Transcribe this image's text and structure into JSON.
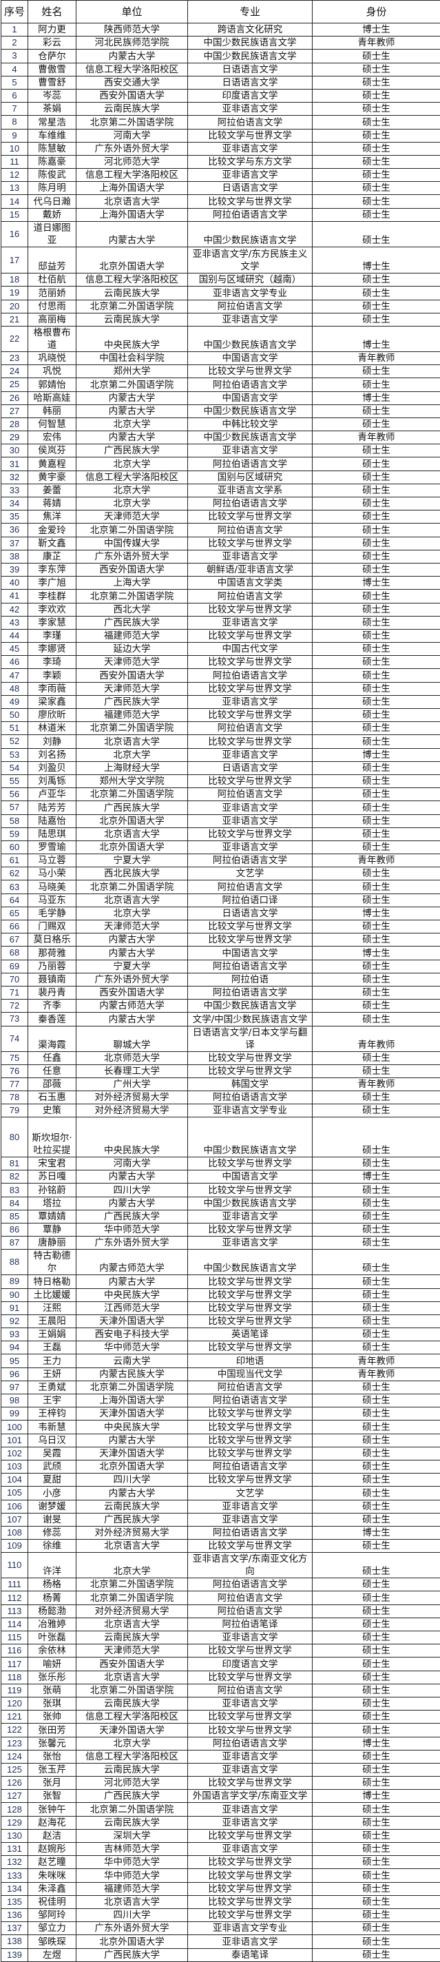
{
  "headers": [
    "序号",
    "姓名",
    "单位",
    "专业",
    "身份"
  ],
  "rows": [
    [
      "1",
      "阿力更",
      "陕西师范大学",
      "跨语言文化研究",
      "博士生"
    ],
    [
      "2",
      "彩云",
      "河北民族师范学院",
      "中国少数民族语言文学",
      "青年教师"
    ],
    [
      "3",
      "仓萨尔",
      "内蒙古大学",
      "中国少数民族语言文学",
      "硕士生"
    ],
    [
      "4",
      "曹傲雪",
      "信息工程大学洛阳校区",
      "日语语言文学",
      "硕士生"
    ],
    [
      "5",
      "曹雪舒",
      "西安交通大学",
      "日语语言文学",
      "硕士生"
    ],
    [
      "6",
      "岑蕊",
      "西安外国语大学",
      "印度语言文学",
      "硕士生"
    ],
    [
      "7",
      "茶娟",
      "云南民族大学",
      "亚非语言文学",
      "硕士生"
    ],
    [
      "8",
      "常星浩",
      "北京第二外国语学院",
      "阿拉伯语言文学",
      "硕士生"
    ],
    [
      "9",
      "车维维",
      "河南大学",
      "比较文学与世界文学",
      "硕士生"
    ],
    [
      "10",
      "陈慧敏",
      "广东外语外贸大学",
      "亚非语言文学",
      "硕士生"
    ],
    [
      "11",
      "陈嘉豪",
      "河北师范大学",
      "比较文学与东方文学",
      "硕士生"
    ],
    [
      "12",
      "陈俊武",
      "信息工程大学洛阳校区",
      "亚非语言文学",
      "硕士生"
    ],
    [
      "13",
      "陈月明",
      "上海外国语大学",
      "日语语言文学",
      "硕士生"
    ],
    [
      "14",
      "代乌日瀚",
      "北京语言大学",
      "比较文学与世界文学",
      "硕士生"
    ],
    [
      "15",
      "戴娇",
      "上海外国语大学",
      "阿拉伯语语言文学",
      "硕士生"
    ],
    [
      "16",
      "道日娜图亚",
      "内蒙古大学",
      "中国少数民族语言文学",
      "硕士生"
    ],
    [
      "17",
      "邸益芳",
      "北京外国语大学",
      "亚非语言文学/东方民族主义文学",
      "博士生"
    ],
    [
      "18",
      "杜佰航",
      "信息工程大学洛阳校区",
      "国别与区域研究（越南）",
      "硕士生"
    ],
    [
      "19",
      "范丽娇",
      "云南民族大学",
      "亚非语言文学专业",
      "硕士生"
    ],
    [
      "20",
      "付思雨",
      "北京第二外国语学院",
      "阿拉伯语言文学",
      "硕士生"
    ],
    [
      "21",
      "高丽梅",
      "云南民族大学",
      "亚非语言文学",
      "硕士生"
    ],
    [
      "22",
      "格根曹布道",
      "中央民族大学",
      "中国少数民族语言文学",
      "博士生"
    ],
    [
      "23",
      "巩晓悦",
      "中国社会科学院",
      "中国语言文学",
      "青年教师"
    ],
    [
      "24",
      "巩悦",
      "郑州大学",
      "比较文学与世界文学",
      "硕士生"
    ],
    [
      "25",
      "郭婧怡",
      "北京第二外国语学院",
      "阿拉伯语语言文学",
      "硕士生"
    ],
    [
      "26",
      "哈斯高娃",
      "内蒙古大学",
      "中国语言文学",
      "博士生"
    ],
    [
      "27",
      "韩丽",
      "内蒙古大学",
      "中国少数民族语言文学",
      "硕士生"
    ],
    [
      "28",
      "何智慧",
      "北京大学",
      "中韩比较文学",
      "硕士生"
    ],
    [
      "29",
      "宏伟",
      "内蒙古大学",
      "中国少数民族语言文学",
      "青年教师"
    ],
    [
      "30",
      "侯岚芬",
      "广西民族大学",
      "亚非语言文学",
      "硕士生"
    ],
    [
      "31",
      "黄嘉程",
      "北京大学",
      "阿拉伯语语言文学",
      "硕士生"
    ],
    [
      "32",
      "黄宇豪",
      "信息工程大学洛阳校区",
      "国别与区域研究",
      "硕士生"
    ],
    [
      "33",
      "姜蕾",
      "北京大学",
      "亚非语言文学系",
      "硕士生"
    ],
    [
      "34",
      "蒋婧",
      "北京大学",
      "阿拉伯语语言文学",
      "硕士生"
    ],
    [
      "35",
      "焦洋",
      "天津师范大学",
      "比较文学与世界文学",
      "硕士生"
    ],
    [
      "36",
      "金爱玲",
      "北京第二外国语学院",
      "阿拉伯语言文学",
      "硕士生"
    ],
    [
      "37",
      "靳文鑫",
      "中国传媒大学",
      "比较文学与世界文学",
      "硕士生"
    ],
    [
      "38",
      "康芷",
      "广东外语外贸大学",
      "亚非语言文学",
      "硕士生"
    ],
    [
      "39",
      "李东萍",
      "西安外国语大学",
      "朝鲜语/亚非语言文学",
      "硕士生"
    ],
    [
      "40",
      "李广旭",
      "上海大学",
      "中国语言文学类",
      "博士生"
    ],
    [
      "41",
      "李桂群",
      "北京第二外国语学院",
      "阿拉伯语言文学",
      "硕士生"
    ],
    [
      "42",
      "李欢欢",
      "西北大学",
      "比较文学与世界文学",
      "硕士生"
    ],
    [
      "43",
      "李家慧",
      "广西民族大学",
      "亚非语言文学",
      "硕士生"
    ],
    [
      "44",
      "李瑾",
      "福建师范大学",
      "比较文学与世界文学",
      "硕士生"
    ],
    [
      "45",
      "李娜贤",
      "延边大学",
      "中国古代文学",
      "硕士生"
    ],
    [
      "46",
      "李琦",
      "天津师范大学",
      "比较文学与世界文学",
      "硕士生"
    ],
    [
      "47",
      "李颖",
      "西安外国语大学",
      "阿拉伯语语言文学",
      "硕士生"
    ],
    [
      "48",
      "李雨薇",
      "天津师范大学",
      "比较文学与世界文学",
      "硕士生"
    ],
    [
      "49",
      "梁家鑫",
      "广西民族大学",
      "亚非语言文学",
      "硕士生"
    ],
    [
      "50",
      "廖欣昕",
      "福建师范大学",
      "比较文学与世界文学",
      "硕士生"
    ],
    [
      "51",
      "林道米",
      "北京第二外国语学院",
      "阿拉伯语言文学",
      "硕士生"
    ],
    [
      "52",
      "刘静",
      "北京语言大学",
      "比较文学与世界文学",
      "硕士生"
    ],
    [
      "53",
      "刘名扬",
      "北京大学",
      "亚非语言文学",
      "博士生"
    ],
    [
      "54",
      "刘盈贝",
      "上海财经大学",
      "日语语言文学",
      "硕士生"
    ],
    [
      "55",
      "刘禹铄",
      "郑州大学文学院",
      "比较文学与世界文学",
      "硕士生"
    ],
    [
      "56",
      "卢亚华",
      "北京第二外国语学院",
      "阿拉伯语言文学",
      "硕士生"
    ],
    [
      "57",
      "陆芳芳",
      "广西民族大学",
      "亚非语言文学",
      "硕士生"
    ],
    [
      "58",
      "陆嘉怡",
      "北京外国语大学",
      "亚非语言文学",
      "硕士生"
    ],
    [
      "59",
      "陆思琪",
      "北京语言大学",
      "比较文学与世界文学",
      "硕士生"
    ],
    [
      "60",
      "罗雪瑜",
      "北京外国语大学",
      "亚非语言文学",
      "硕士生"
    ],
    [
      "61",
      "马立蓉",
      "宁夏大学",
      "阿拉伯语语言文学",
      "青年教师"
    ],
    [
      "62",
      "马小荣",
      "西北民族大学",
      "文艺学",
      "硕士生"
    ],
    [
      "63",
      "马晓美",
      "北京第二外国语学院",
      "阿拉伯语言文学",
      "硕士生"
    ],
    [
      "64",
      "马亚东",
      "北京语言大学",
      "阿拉伯语口译",
      "硕士生"
    ],
    [
      "65",
      "毛学静",
      "北京大学",
      "日语语言文学",
      "博士生"
    ],
    [
      "66",
      "门赐双",
      "天津师范大学",
      "比较文学与世界文学",
      "硕士生"
    ],
    [
      "67",
      "莫日格乐",
      "内蒙古大学",
      "比较文学与世界文学",
      "硕士生"
    ],
    [
      "68",
      "那荷雅",
      "内蒙古大学",
      "中国语言文学",
      "博士生"
    ],
    [
      "69",
      "乃丽蓉",
      "宁夏大学",
      "阿拉伯语语言文学",
      "硕士生"
    ],
    [
      "70",
      "聂镇南",
      "广东外语外贸大学",
      "阿拉伯语",
      "硕士生"
    ],
    [
      "71",
      "裴丹青",
      "西安外国语大学",
      "阿拉伯语语言文学",
      "硕士生"
    ],
    [
      "72",
      "齐季",
      "内蒙古师范大学",
      "中国少数民族语言文学",
      "硕士生"
    ],
    [
      "73",
      "秦香莲",
      "内蒙古大学",
      "文学/中国少数民族语言文学",
      "硕士生"
    ],
    [
      "74",
      "渠海霞",
      "聊城大学",
      "日语语言文学/日本文学与翻译",
      "青年教师"
    ],
    [
      "75",
      "任鑫",
      "北京师范大学",
      "比较文学与世界文学",
      "硕士生"
    ],
    [
      "76",
      "任意",
      "长春理工大学",
      "比较文学与世界文学",
      "硕士生"
    ],
    [
      "77",
      "邵薇",
      "广州大学",
      "韩国文学",
      "青年教师"
    ],
    [
      "78",
      "石玉惠",
      "对外经济贸易大学",
      "阿拉伯语语言文学",
      "硕士生"
    ],
    [
      "79",
      "史策",
      "对外经济贸易大学",
      "亚非语言文学专业",
      "硕士生"
    ],
    [
      "80",
      "斯坎坦尔·吐拉买提",
      "中央民族大学",
      "中国少数民族语言文学",
      "硕士生"
    ],
    [
      "81",
      "宋宝君",
      "河南大学",
      "比较文学与世界文学",
      "硕士生"
    ],
    [
      "82",
      "苏日嘎",
      "内蒙古大学",
      "中国语言文学",
      "博士生"
    ],
    [
      "83",
      "孙铭蔚",
      "四川大学",
      "比较文学与世界文学",
      "硕士生"
    ],
    [
      "84",
      "塔拉",
      "内蒙古大学",
      "中国少数民族语言文学",
      "硕士生"
    ],
    [
      "85",
      "覃婧婧",
      "广西民族大学",
      "亚非语言文学",
      "硕士生"
    ],
    [
      "86",
      "覃静",
      "华中师范大学",
      "比较文学与世界文学",
      "硕士生"
    ],
    [
      "87",
      "唐静丽",
      "广东外语外贸大学",
      "亚非语言文学",
      "硕士生"
    ],
    [
      "88",
      "特古勒德尔",
      "内蒙古师范大学",
      "中国少数民族语言文学",
      "硕士生"
    ],
    [
      "89",
      "特日格勒",
      "内蒙古大学",
      "比较文学与世界文学",
      "硕士生"
    ],
    [
      "90",
      "土比媛媛",
      "中央民族大学",
      "比较文学与世界文学",
      "硕士生"
    ],
    [
      "91",
      "汪熙",
      "江西师范大学",
      "比较文学与世界文学",
      "硕士生"
    ],
    [
      "92",
      "王晨阳",
      "天津外国语大学",
      "比较文学与世界文学",
      "硕士生"
    ],
    [
      "93",
      "王娟娟",
      "西安电子科技大学",
      "英语笔译",
      "硕士生"
    ],
    [
      "94",
      "王磊",
      "华中师范大学",
      "比较文学与世界文学",
      "硕士生"
    ],
    [
      "95",
      "王力",
      "云南大学",
      "印地语",
      "青年教师"
    ],
    [
      "96",
      "王妍",
      "内蒙古民族大学",
      "中国现当代文学",
      "青年教师"
    ],
    [
      "97",
      "王勇斌",
      "北京第二外国语学院",
      "阿拉伯语言文学",
      "硕士生"
    ],
    [
      "98",
      "王宇",
      "上海外国语大学",
      "阿拉伯语语言文学",
      "硕士生"
    ],
    [
      "99",
      "王梓钧",
      "天津外国语大学",
      "比较文学与世界文学",
      "硕士生"
    ],
    [
      "100",
      "韦新慧",
      "中央民族大学",
      "比较文学与世界文学",
      "硕士生"
    ],
    [
      "101",
      "乌日汉",
      "内蒙古大学",
      "比较文学与世界文学",
      "硕士生"
    ],
    [
      "102",
      "吴霞",
      "天津外国语大学",
      "比较文学与世界文学",
      "硕士生"
    ],
    [
      "103",
      "武颀",
      "北京外国语大学",
      "阿拉伯语语言文学",
      "硕士生"
    ],
    [
      "104",
      "夏甜",
      "四川大学",
      "比较文学与世界文学",
      "硕士生"
    ],
    [
      "105",
      "小彦",
      "内蒙古大学",
      "文艺学",
      "硕士生"
    ],
    [
      "106",
      "谢梦媛",
      "云南民族大学",
      "亚非语言文学",
      "硕士生"
    ],
    [
      "107",
      "谢旻",
      "广西民族大学",
      "亚非语言文学",
      "硕士生"
    ],
    [
      "108",
      "修蕊",
      "对外经济贸易大学",
      "阿拉伯语语言文学",
      "博士生"
    ],
    [
      "109",
      "徐维",
      "北京语言大学",
      "比较文学与世界文学",
      "硕士生"
    ],
    [
      "110",
      "许洋",
      "北京大学",
      "亚非语言文学/东南亚文化方向",
      "硕士生"
    ],
    [
      "111",
      "杨格",
      "北京第二外国语学院",
      "阿拉伯语语言文学",
      "硕士生"
    ],
    [
      "112",
      "杨菁",
      "北京第二外国语学院",
      "阿拉伯语言文学",
      "硕士生"
    ],
    [
      "113",
      "杨懿渤",
      "对外经济贸易大学",
      "阿拉伯语言文学",
      "硕士生"
    ],
    [
      "114",
      "冶雅婷",
      "北京语言大学",
      "阿拉伯语笔译",
      "硕士生"
    ],
    [
      "115",
      "叶张磊",
      "云南民族大学",
      "亚非语言文学",
      "硕士生"
    ],
    [
      "116",
      "余依林",
      "天津师范大学",
      "比较文学与世界文学",
      "硕士生"
    ],
    [
      "117",
      "喻妍",
      "西安外国语大学",
      "印度语言文学",
      "硕士生"
    ],
    [
      "118",
      "张乐彤",
      "北京语言大学",
      "比较文学与世界文学",
      "硕士生"
    ],
    [
      "119",
      "张萌",
      "北京第二外国语学院",
      "阿拉伯语言文学",
      "硕士生"
    ],
    [
      "120",
      "张琪",
      "云南民族大学",
      "亚非语言文学",
      "硕士生"
    ],
    [
      "121",
      "张帅",
      "信息工程大学洛阳校区",
      "比较文学与世界文学",
      "硕士生"
    ],
    [
      "122",
      "张田芳",
      "天津外国语大学",
      "比较文学与世界文学",
      "硕士生"
    ],
    [
      "123",
      "张馨元",
      "北京大学",
      "阿拉伯语语言文学",
      "博士生"
    ],
    [
      "124",
      "张怡",
      "信息工程大学洛阳校区",
      "亚非语言文学",
      "硕士生"
    ],
    [
      "125",
      "张玉芹",
      "云南民族大学",
      "亚非语言文学",
      "硕士生"
    ],
    [
      "126",
      "张月",
      "河北师范大学",
      "比较文学与世界文学",
      "硕士生"
    ],
    [
      "127",
      "张智",
      "广西民族大学",
      "外国语言学文学/东南亚文学",
      "博士生"
    ],
    [
      "128",
      "张钟午",
      "北京第二外国语学院",
      "亚非语言文学",
      "硕士生"
    ],
    [
      "129",
      "赵海花",
      "云南民族大学",
      "亚非语言文学",
      "硕士生"
    ],
    [
      "130",
      "赵洁",
      "深圳大学",
      "比较文学与世界文学",
      "硕士生"
    ],
    [
      "131",
      "赵婉彤",
      "吉林师范大学",
      "亚非语言文学",
      "硕士生"
    ],
    [
      "132",
      "赵艺瞳",
      "华中师范大学",
      "比较文学与世界文学",
      "硕士生"
    ],
    [
      "133",
      "朱咪咪",
      "华中师范大学",
      "比较文学与世界文学",
      "硕士生"
    ],
    [
      "134",
      "朱泽鑫",
      "福建师范大学",
      "比较文学与世界文学",
      "硕士生"
    ],
    [
      "135",
      "祝佳明",
      "北京语言大学",
      "比较文学与世界文学",
      "硕士生"
    ],
    [
      "136",
      "邹阿玲",
      "四川大学",
      "比较文学与世界文学",
      "硕士生"
    ],
    [
      "137",
      "邹立力",
      "广东外语外贸大学",
      "亚非语言文学专业",
      "硕士生"
    ],
    [
      "138",
      "邹昳琛",
      "北京外国语大学",
      "亚非语言文学",
      "硕士生"
    ],
    [
      "139",
      "左煜",
      "广西民族大学",
      "泰语笔译",
      "硕士生"
    ]
  ]
}
